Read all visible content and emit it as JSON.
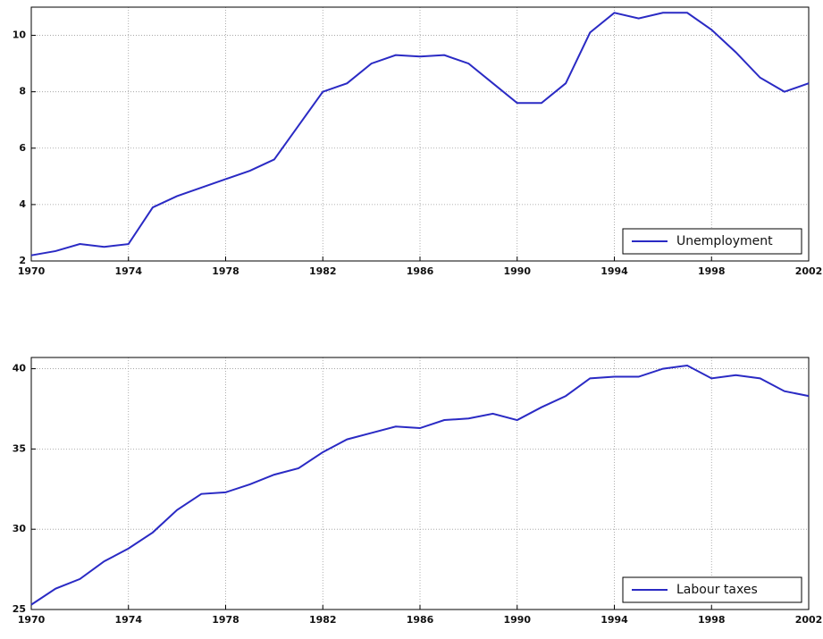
{
  "chart_data": [
    {
      "type": "line",
      "x": [
        1970,
        1971,
        1972,
        1973,
        1974,
        1975,
        1976,
        1977,
        1978,
        1979,
        1980,
        1981,
        1982,
        1983,
        1984,
        1985,
        1986,
        1987,
        1988,
        1989,
        1990,
        1991,
        1992,
        1993,
        1994,
        1995,
        1996,
        1997,
        1998,
        1999,
        2000,
        2001,
        2002
      ],
      "series": [
        {
          "name": "Unemployment",
          "color": "#2a2ac4",
          "values": [
            2.2,
            2.35,
            2.6,
            2.5,
            2.6,
            3.9,
            4.3,
            4.6,
            4.9,
            5.2,
            5.6,
            6.8,
            8.0,
            8.3,
            9.0,
            9.3,
            9.25,
            9.3,
            9.0,
            8.3,
            7.6,
            7.6,
            8.3,
            10.1,
            10.8,
            10.6,
            10.8,
            10.8,
            10.2,
            9.4,
            8.5,
            8.0,
            8.3
          ]
        }
      ],
      "xlim": [
        1970,
        2002
      ],
      "xticks": [
        1970,
        1974,
        1978,
        1982,
        1986,
        1990,
        1994,
        1998,
        2002
      ],
      "ylim": [
        2,
        11
      ],
      "yticks": [
        2,
        4,
        6,
        8,
        10
      ],
      "grid": true,
      "legend": "lower right"
    },
    {
      "type": "line",
      "x": [
        1970,
        1971,
        1972,
        1973,
        1974,
        1975,
        1976,
        1977,
        1978,
        1979,
        1980,
        1981,
        1982,
        1983,
        1984,
        1985,
        1986,
        1987,
        1988,
        1989,
        1990,
        1991,
        1992,
        1993,
        1994,
        1995,
        1996,
        1997,
        1998,
        1999,
        2000,
        2001,
        2002
      ],
      "series": [
        {
          "name": "Labour taxes",
          "color": "#2a2ac4",
          "values": [
            25.3,
            26.3,
            26.9,
            28.0,
            28.8,
            29.8,
            31.2,
            32.2,
            32.3,
            32.8,
            33.4,
            33.8,
            34.8,
            35.6,
            36.0,
            36.4,
            36.3,
            36.8,
            36.9,
            37.2,
            36.8,
            37.6,
            38.3,
            39.4,
            39.5,
            39.5,
            40.0,
            40.2,
            39.4,
            39.6,
            39.4,
            38.6,
            38.3
          ]
        }
      ],
      "xlim": [
        1970,
        2002
      ],
      "xticks": [
        1970,
        1974,
        1978,
        1982,
        1986,
        1990,
        1994,
        1998,
        2002
      ],
      "ylim": [
        25,
        40.7
      ],
      "yticks": [
        25,
        30,
        35,
        40
      ],
      "grid": true,
      "legend": "lower right"
    }
  ]
}
